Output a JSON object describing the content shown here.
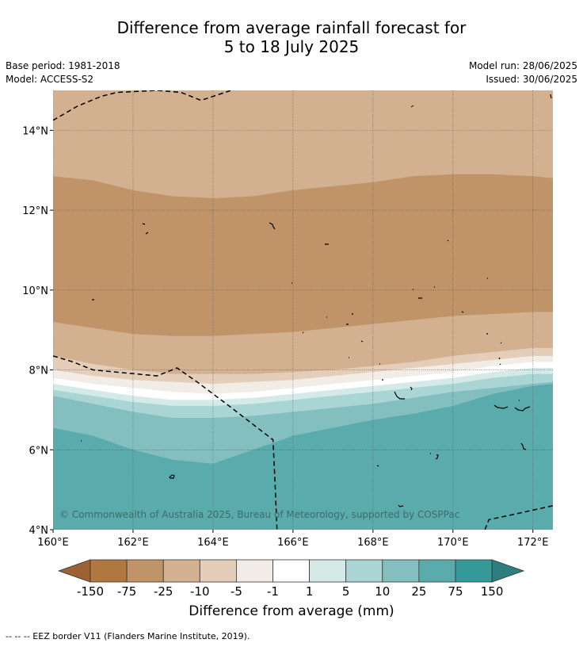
{
  "header": {
    "title_line1": "Difference from average rainfall forecast for",
    "title_line2": "5 to 18 July 2025",
    "base_period": "Base period: 1981-2018",
    "model": "Model: ACCESS-S2",
    "model_run": "Model run: 28/06/2025",
    "issued": "Issued: 30/06/2025"
  },
  "map": {
    "copyright": "© Commonwealth of Australia 2025, Bureau of Meteorology, supported by COSPPac",
    "footnote": "--  --  -- EEZ border V11 (Flanders Marine Institute, 2019)."
  },
  "chart_data": {
    "type": "heatmap",
    "x_ticks": [
      "160°E",
      "162°E",
      "164°E",
      "166°E",
      "168°E",
      "170°E",
      "172°E"
    ],
    "y_ticks": [
      "14°N",
      "12°N",
      "10°N",
      "8°N",
      "6°N",
      "4°N"
    ],
    "x_range": [
      160,
      172.5
    ],
    "y_range": [
      4,
      15
    ],
    "grid": true,
    "colorbar": {
      "title": "Difference from average (mm)",
      "labels": [
        "-150",
        "-75",
        "-25",
        "-10",
        "-5",
        "-1",
        "1",
        "5",
        "10",
        "25",
        "75",
        "150"
      ],
      "colors": [
        "#9c6232",
        "#b07840",
        "#c09468",
        "#d3b08f",
        "#e4cdb9",
        "#f2ece6",
        "#ffffff",
        "#d4eae7",
        "#aad5d5",
        "#84bfc0",
        "#5aabac",
        "#35999a",
        "#2f7e7e"
      ]
    },
    "bands": [
      {
        "category": "-25 to -10",
        "color": "#d3b08f",
        "lower": [
          [
            160,
            12.85
          ],
          [
            161,
            12.75
          ],
          [
            162,
            12.5
          ],
          [
            163,
            12.35
          ],
          [
            164,
            12.3
          ],
          [
            165,
            12.35
          ],
          [
            166,
            12.5
          ],
          [
            167,
            12.6
          ],
          [
            168,
            12.7
          ],
          [
            169,
            12.85
          ],
          [
            170,
            12.9
          ],
          [
            171,
            12.9
          ],
          [
            172,
            12.85
          ],
          [
            172.5,
            12.8
          ]
        ]
      },
      {
        "category": "-75 to -25",
        "color": "#c09468",
        "lower": [
          [
            160,
            9.2
          ],
          [
            161,
            9.05
          ],
          [
            162,
            8.9
          ],
          [
            163,
            8.85
          ],
          [
            164,
            8.85
          ],
          [
            165,
            8.9
          ],
          [
            166,
            8.95
          ],
          [
            167,
            9.05
          ],
          [
            168,
            9.15
          ],
          [
            169,
            9.25
          ],
          [
            170,
            9.35
          ],
          [
            171,
            9.4
          ],
          [
            172,
            9.45
          ],
          [
            172.5,
            9.45
          ]
        ]
      },
      {
        "category": "-25 to -10",
        "color": "#d3b08f",
        "lower": [
          [
            160,
            8.35
          ],
          [
            161,
            8.15
          ],
          [
            162,
            8.0
          ],
          [
            163,
            7.9
          ],
          [
            164,
            7.9
          ],
          [
            165,
            7.9
          ],
          [
            166,
            7.95
          ],
          [
            167,
            8.0
          ],
          [
            168,
            8.1
          ],
          [
            169,
            8.2
          ],
          [
            170,
            8.35
          ],
          [
            171,
            8.45
          ],
          [
            172,
            8.55
          ],
          [
            172.5,
            8.55
          ]
        ]
      },
      {
        "category": "-10 to -5",
        "color": "#e4cdb9",
        "lower": [
          [
            160,
            8.0
          ],
          [
            161,
            7.85
          ],
          [
            162,
            7.75
          ],
          [
            163,
            7.7
          ],
          [
            164,
            7.65
          ],
          [
            165,
            7.7
          ],
          [
            166,
            7.75
          ],
          [
            167,
            7.85
          ],
          [
            168,
            7.95
          ],
          [
            169,
            8.05
          ],
          [
            170,
            8.15
          ],
          [
            171,
            8.25
          ],
          [
            172,
            8.35
          ],
          [
            172.5,
            8.35
          ]
        ]
      },
      {
        "category": "-5 to -1",
        "color": "#f2ece6",
        "lower": [
          [
            160,
            7.8
          ],
          [
            161,
            7.65
          ],
          [
            162,
            7.55
          ],
          [
            163,
            7.45
          ],
          [
            164,
            7.4
          ],
          [
            165,
            7.45
          ],
          [
            166,
            7.55
          ],
          [
            167,
            7.65
          ],
          [
            168,
            7.75
          ],
          [
            169,
            7.85
          ],
          [
            170,
            7.95
          ],
          [
            171,
            8.1
          ],
          [
            172,
            8.2
          ],
          [
            172.5,
            8.2
          ]
        ]
      },
      {
        "category": "-1 to 1",
        "color": "#ffffff",
        "lower": [
          [
            160,
            7.65
          ],
          [
            161,
            7.5
          ],
          [
            162,
            7.35
          ],
          [
            163,
            7.25
          ],
          [
            164,
            7.25
          ],
          [
            165,
            7.3
          ],
          [
            166,
            7.4
          ],
          [
            167,
            7.5
          ],
          [
            168,
            7.6
          ],
          [
            169,
            7.7
          ],
          [
            170,
            7.8
          ],
          [
            171,
            7.95
          ],
          [
            172,
            8.05
          ],
          [
            172.5,
            8.05
          ]
        ]
      },
      {
        "category": "1 to 5",
        "color": "#d4eae7",
        "lower": [
          [
            160,
            7.5
          ],
          [
            161,
            7.35
          ],
          [
            162,
            7.2
          ],
          [
            163,
            7.1
          ],
          [
            164,
            7.1
          ],
          [
            165,
            7.15
          ],
          [
            166,
            7.25
          ],
          [
            167,
            7.35
          ],
          [
            168,
            7.45
          ],
          [
            169,
            7.55
          ],
          [
            170,
            7.65
          ],
          [
            171,
            7.8
          ],
          [
            172,
            7.9
          ],
          [
            172.5,
            7.9
          ]
        ]
      },
      {
        "category": "5 to 10",
        "color": "#aad5d5",
        "lower": [
          [
            160,
            7.35
          ],
          [
            161,
            7.15
          ],
          [
            162,
            6.95
          ],
          [
            163,
            6.8
          ],
          [
            164,
            6.8
          ],
          [
            165,
            6.85
          ],
          [
            166,
            6.95
          ],
          [
            167,
            7.05
          ],
          [
            168,
            7.15
          ],
          [
            169,
            7.3
          ],
          [
            170,
            7.45
          ],
          [
            171,
            7.55
          ],
          [
            172,
            7.65
          ],
          [
            172.5,
            7.7
          ]
        ]
      },
      {
        "category": "10 to 25",
        "color": "#84bfc0",
        "lower": [
          [
            160,
            6.55
          ],
          [
            161,
            6.35
          ],
          [
            162,
            6.0
          ],
          [
            163,
            5.75
          ],
          [
            164,
            5.65
          ],
          [
            165,
            6.0
          ],
          [
            166,
            6.35
          ],
          [
            167,
            6.55
          ],
          [
            168,
            6.75
          ],
          [
            169,
            6.9
          ],
          [
            170,
            7.1
          ],
          [
            171,
            7.4
          ],
          [
            172,
            7.6
          ],
          [
            172.5,
            7.65
          ]
        ]
      },
      {
        "category": "25 to 75",
        "color": "#5aabac",
        "lower": [
          [
            160,
            4
          ],
          [
            172.5,
            4
          ]
        ]
      }
    ],
    "eez_borders": [
      [
        [
          160,
          14.25
        ],
        [
          160.6,
          14.6
        ],
        [
          161.2,
          14.85
        ],
        [
          161.6,
          14.95
        ],
        [
          162.6,
          15.0
        ],
        [
          163.2,
          14.95
        ],
        [
          163.7,
          14.75
        ],
        [
          164.3,
          14.95
        ],
        [
          164.6,
          15.05
        ]
      ],
      [
        [
          160,
          8.35
        ],
        [
          160.5,
          8.2
        ],
        [
          161,
          8.0
        ],
        [
          162.6,
          7.85
        ],
        [
          163.1,
          8.05
        ],
        [
          163.6,
          7.7
        ],
        [
          164.4,
          7.1
        ],
        [
          165.5,
          6.25
        ],
        [
          165.55,
          5.2
        ],
        [
          165.6,
          4.0
        ]
      ],
      [
        [
          170.8,
          4.0
        ],
        [
          170.9,
          4.25
        ],
        [
          171.6,
          4.4
        ],
        [
          172.5,
          4.6
        ]
      ]
    ]
  }
}
